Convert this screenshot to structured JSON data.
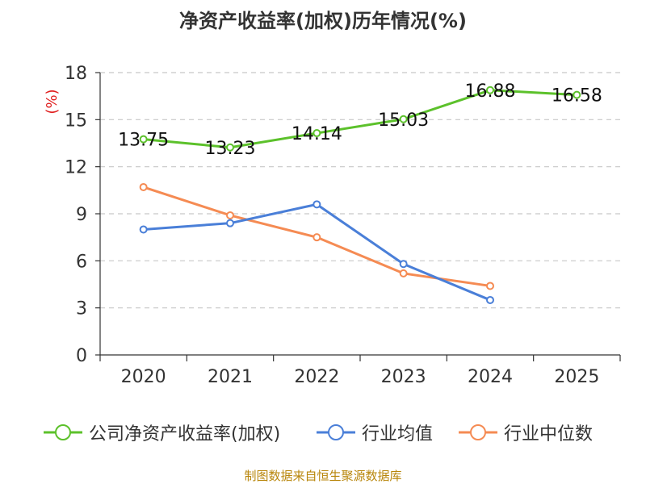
{
  "chart_data": {
    "type": "line",
    "title": "净资产收益率(加权)历年情况(%)",
    "ylabel": "(%)",
    "xlabel": "",
    "categories": [
      "2020",
      "2021",
      "2022",
      "2023",
      "2024",
      "2025"
    ],
    "ylim": [
      0,
      18
    ],
    "yticks": [
      0,
      3,
      6,
      9,
      12,
      15,
      18
    ],
    "grid": true,
    "legend_position": "bottom",
    "series": [
      {
        "name": "公司净资产收益率(加权)",
        "color": "#5cc12b",
        "values": [
          13.75,
          13.23,
          14.14,
          15.03,
          16.88,
          16.58
        ],
        "labels": [
          "13.75",
          "13.23",
          "14.14",
          "15.03",
          "16.88",
          "16.58"
        ]
      },
      {
        "name": "行业均值",
        "color": "#4a7fd8",
        "values": [
          8.0,
          8.4,
          9.6,
          5.8,
          3.5,
          null
        ]
      },
      {
        "name": "行业中位数",
        "color": "#f58b53",
        "values": [
          10.7,
          8.9,
          7.5,
          5.2,
          4.4,
          null
        ]
      }
    ]
  },
  "source": "制图数据来自恒生聚源数据库"
}
